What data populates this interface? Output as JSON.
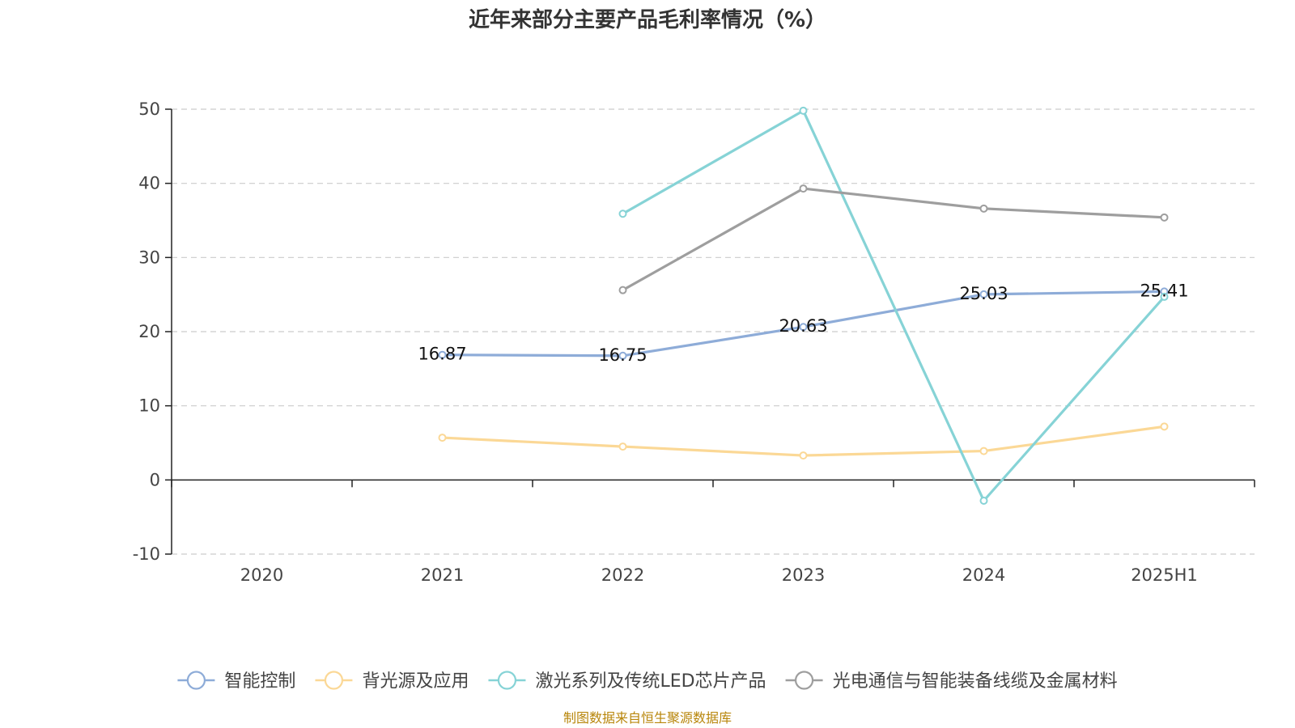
{
  "chart_data": {
    "type": "line",
    "title": "近年来部分主要产品毛利率情况（%）",
    "source": "制图数据来自恒生聚源数据库",
    "categories": [
      "2020",
      "2021",
      "2022",
      "2023",
      "2024",
      "2025H1"
    ],
    "ylim": [
      -10,
      50
    ],
    "yticks": [
      50,
      40,
      30,
      20,
      10,
      0,
      -10
    ],
    "grid": true,
    "legend_position": "bottom",
    "series": [
      {
        "name": "智能控制",
        "color": "#8eacd8",
        "values": [
          null,
          16.87,
          16.75,
          20.63,
          25.03,
          25.41
        ],
        "labels": [
          null,
          "16.87",
          "16.75",
          "20.63",
          "25.03",
          "25.41"
        ]
      },
      {
        "name": "背光源及应用",
        "color": "#fbd896",
        "values": [
          null,
          5.7,
          4.5,
          3.3,
          3.9,
          7.2
        ]
      },
      {
        "name": "激光系列及传统LED芯片产品",
        "color": "#86d3d6",
        "values": [
          null,
          null,
          35.9,
          49.8,
          -2.8,
          24.7
        ]
      },
      {
        "name": "光电通信与智能装备线缆及金属材料",
        "color": "#9e9e9e",
        "values": [
          null,
          null,
          25.6,
          39.3,
          36.6,
          35.4
        ]
      }
    ]
  }
}
